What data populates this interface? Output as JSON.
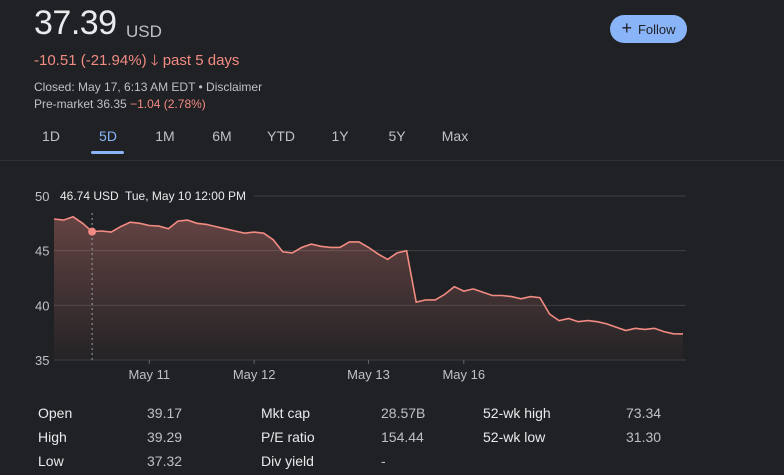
{
  "quote": {
    "price": "37.39",
    "currency": "USD",
    "change": "-10.51 (-21.94%)",
    "change_arrow": "🡓",
    "change_period": "past 5 days",
    "closed_text": "Closed: May 17, 6:13 AM EDT • Disclaimer",
    "premarket_label": "Pre-market 36.35",
    "premarket_change": "−1.04 (2.78%)",
    "negative_color": "#f28b82",
    "accent_color": "#8ab4f8"
  },
  "follow_button": {
    "icon": "plus-icon",
    "label": "Follow"
  },
  "tabs": [
    {
      "label": "1D"
    },
    {
      "label": "5D"
    },
    {
      "label": "1M"
    },
    {
      "label": "6M"
    },
    {
      "label": "YTD"
    },
    {
      "label": "1Y"
    },
    {
      "label": "5Y"
    },
    {
      "label": "Max"
    }
  ],
  "active_tab": "5D",
  "tooltip": {
    "value": "46.74 USD",
    "date": "Tue, May 10 12:00 PM"
  },
  "chart_data": {
    "type": "area",
    "ylim": [
      35,
      50
    ],
    "yticks": [
      50,
      45,
      40,
      35
    ],
    "x_tick_labels": [
      "May 11",
      "May 12",
      "May 13",
      "May 16"
    ],
    "x_tick_index": [
      10,
      21,
      33,
      43
    ],
    "hover_index": 4,
    "values": [
      47.9,
      47.8,
      48.1,
      47.5,
      46.74,
      46.8,
      46.7,
      47.2,
      47.6,
      47.5,
      47.3,
      47.25,
      47.0,
      47.7,
      47.8,
      47.5,
      47.4,
      47.2,
      47.0,
      46.8,
      46.6,
      46.7,
      46.6,
      46.0,
      44.9,
      44.8,
      45.3,
      45.6,
      45.4,
      45.3,
      45.3,
      45.8,
      45.8,
      45.3,
      44.7,
      44.2,
      44.8,
      45.0,
      40.3,
      40.5,
      40.5,
      41.0,
      41.7,
      41.3,
      41.5,
      41.2,
      40.9,
      40.9,
      40.8,
      40.6,
      40.8,
      40.7,
      39.2,
      38.6,
      38.8,
      38.5,
      38.6,
      38.5,
      38.3,
      38.0,
      37.7,
      37.9,
      37.8,
      37.9,
      37.6,
      37.4,
      37.39
    ],
    "line_color": "#f28b82",
    "grid": true
  },
  "stats": [
    {
      "label": "Open",
      "value": "39.17"
    },
    {
      "label": "High",
      "value": "39.29"
    },
    {
      "label": "Low",
      "value": "37.32"
    },
    {
      "label": "Mkt cap",
      "value": "28.57B"
    },
    {
      "label": "P/E ratio",
      "value": "154.44"
    },
    {
      "label": "Div yield",
      "value": "-"
    },
    {
      "label": "52-wk high",
      "value": "73.34"
    },
    {
      "label": "52-wk low",
      "value": "31.30"
    }
  ]
}
